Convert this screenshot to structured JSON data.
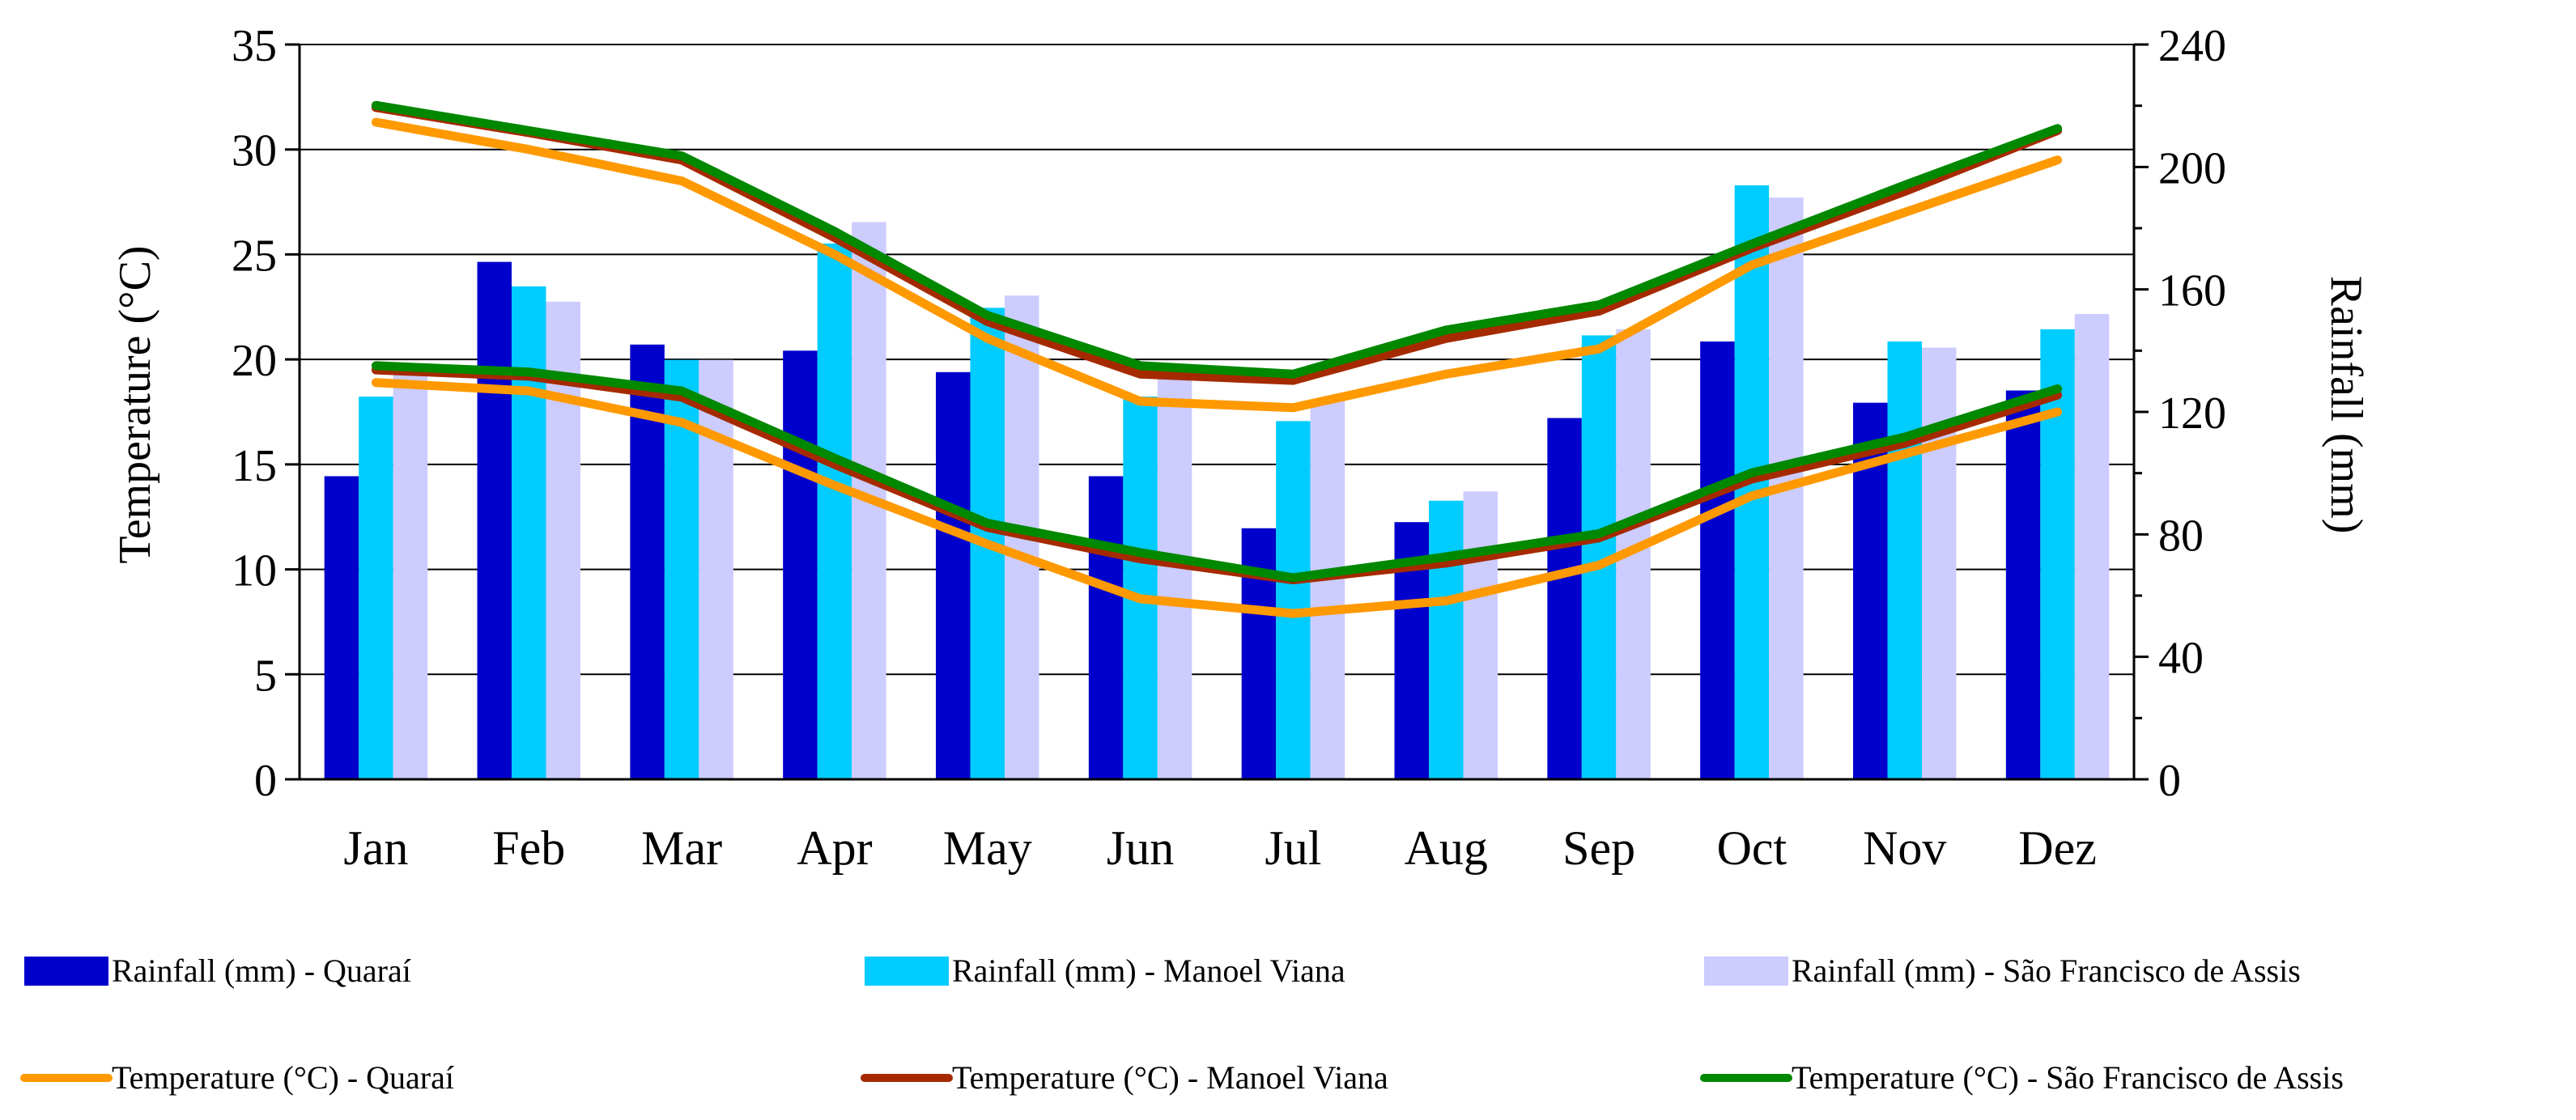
{
  "chart_data": {
    "type": "bar+line",
    "title": "",
    "categories": [
      "Jan",
      "Feb",
      "Mar",
      "Apr",
      "May",
      "Jun",
      "Jul",
      "Aug",
      "Sep",
      "Oct",
      "Nov",
      "Dez"
    ],
    "y_left": {
      "label": "Temperature (°C)",
      "range": [
        0,
        35
      ],
      "ticks": [
        0,
        5,
        10,
        15,
        20,
        25,
        30,
        35
      ]
    },
    "y_right": {
      "label": "Rainfall (mm)",
      "range": [
        0,
        240
      ],
      "ticks": [
        0,
        40,
        80,
        120,
        160,
        200,
        240
      ]
    },
    "bar_series": [
      {
        "name": "Rainfall (mm) - Quaraí",
        "color": "#0000CC",
        "axis": "right",
        "values": [
          99,
          169,
          142,
          140,
          133,
          99,
          82,
          84,
          118,
          143,
          123,
          127
        ]
      },
      {
        "name": "Rainfall (mm) - Manoel Viana",
        "color": "#00CCFF",
        "axis": "right",
        "values": [
          125,
          161,
          137,
          175,
          154,
          125,
          117,
          91,
          145,
          194,
          143,
          147
        ]
      },
      {
        "name": "Rainfall (mm) - São Francisco de Assis",
        "color": "#CCCCFF",
        "axis": "right",
        "values": [
          134,
          156,
          137,
          182,
          158,
          131,
          124,
          94,
          147,
          190,
          141,
          152
        ]
      }
    ],
    "line_series": [
      {
        "name": "Temperature (°C) - Quaraí",
        "color": "#FF9900",
        "axis": "left",
        "values": [
          31.3,
          30.0,
          28.5,
          25.0,
          21.0,
          18.0,
          17.7,
          19.3,
          20.5,
          24.5,
          27.0,
          29.5
        ]
      },
      {
        "name": "Temperature (°C) - Quaraí",
        "color": "#FF9900",
        "axis": "left",
        "values": [
          18.9,
          18.5,
          17.0,
          14.0,
          11.2,
          8.6,
          7.9,
          8.5,
          10.2,
          13.5,
          15.5,
          17.5
        ]
      },
      {
        "name": "Temperature (°C) - Manoel Viana",
        "color": "#A52A00",
        "axis": "left",
        "values": [
          32.0,
          30.8,
          29.5,
          25.8,
          21.8,
          19.3,
          19.0,
          21.0,
          22.3,
          25.3,
          28.0,
          30.9
        ]
      },
      {
        "name": "Temperature (°C) - Manoel Viana",
        "color": "#A52A00",
        "axis": "left",
        "values": [
          19.5,
          19.2,
          18.2,
          15.0,
          12.0,
          10.5,
          9.5,
          10.3,
          11.5,
          14.3,
          16.0,
          18.3
        ]
      },
      {
        "name": "Temperature (°C) - São Francisco de Assis",
        "color": "#008800",
        "axis": "left",
        "values": [
          32.1,
          30.9,
          29.7,
          26.1,
          22.1,
          19.7,
          19.3,
          21.4,
          22.6,
          25.5,
          28.3,
          31.0
        ]
      },
      {
        "name": "Temperature (°C) - São Francisco de Assis",
        "color": "#008800",
        "axis": "left",
        "values": [
          19.7,
          19.4,
          18.5,
          15.3,
          12.2,
          10.8,
          9.6,
          10.6,
          11.7,
          14.6,
          16.3,
          18.6
        ]
      }
    ],
    "legend": {
      "placement": "bottom",
      "items": [
        {
          "kind": "bar",
          "label": "Rainfall (mm) - Quaraí",
          "color": "#0000CC"
        },
        {
          "kind": "bar",
          "label": "Rainfall (mm) - Manoel Viana",
          "color": "#00CCFF"
        },
        {
          "kind": "bar",
          "label": "Rainfall (mm) - São Francisco de Assis",
          "color": "#CCCCFF"
        },
        {
          "kind": "line",
          "label": "Temperature (°C) - Quaraí",
          "color": "#FF9900"
        },
        {
          "kind": "line",
          "label": "Temperature (°C) - Manoel Viana",
          "color": "#A52A00"
        },
        {
          "kind": "line",
          "label": "Temperature (°C) - São Francisco de Assis",
          "color": "#008800"
        }
      ]
    },
    "grid": true
  }
}
